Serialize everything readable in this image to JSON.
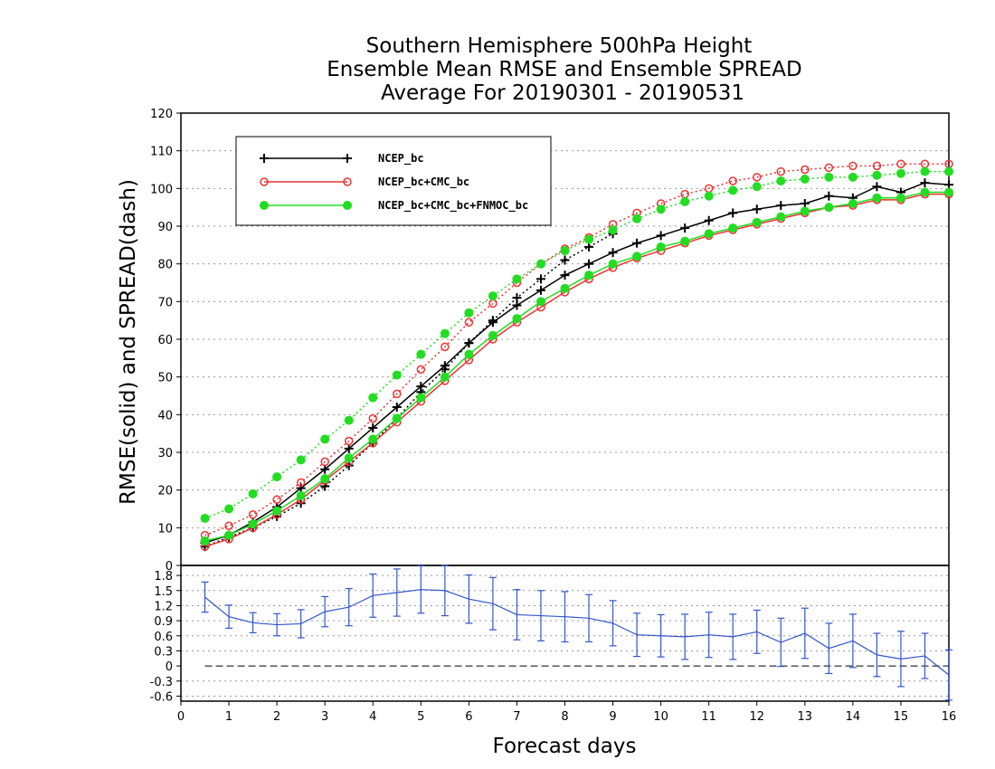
{
  "chart_data": {
    "type": "line",
    "title_lines": [
      "Southern Hemisphere 500hPa Height",
      "Ensemble Mean RMSE and Ensemble SPREAD",
      "Average For 20190301 - 20190531"
    ],
    "xlabel": "Forecast days",
    "ylabel": "RMSE(solid) and SPREAD(dash)",
    "xlim": [
      0,
      16
    ],
    "ylim_top": [
      0,
      120
    ],
    "ylim_bottom": [
      -0.7,
      2.0
    ],
    "x_ticks": [
      "0",
      "1",
      "2",
      "3",
      "4",
      "5",
      "6",
      "7",
      "8",
      "9",
      "10",
      "11",
      "12",
      "13",
      "14",
      "15",
      "16"
    ],
    "y_ticks_top": [
      "0",
      "10",
      "20",
      "30",
      "40",
      "50",
      "60",
      "70",
      "80",
      "90",
      "100",
      "110",
      "120"
    ],
    "y_ticks_bottom": [
      "-0.6",
      "-0.3",
      "0",
      "0.3",
      "0.6",
      "0.9",
      "1.2",
      "1.5",
      "1.8"
    ],
    "legend_position": "top-left",
    "x": [
      0.5,
      1,
      1.5,
      2,
      2.5,
      3,
      3.5,
      4,
      4.5,
      5,
      5.5,
      6,
      6.5,
      7,
      7.5,
      8,
      8.5,
      9,
      9.5,
      10,
      10.5,
      11,
      11.5,
      12,
      12.5,
      13,
      13.5,
      14,
      14.5,
      15,
      15.5,
      16
    ],
    "series": [
      {
        "name": "NCEP_bc",
        "color": "#000000",
        "marker": "plus",
        "rmse": [
          6,
          8,
          11.5,
          15.5,
          20.5,
          25.5,
          31,
          36.5,
          42,
          47.5,
          53,
          59,
          64.5,
          69,
          73,
          77,
          80,
          83,
          85.5,
          87.5,
          89.5,
          91.5,
          93.5,
          94.5,
          95.5,
          96,
          98,
          97.5,
          100.5,
          99,
          101.5,
          101
        ],
        "spread": [
          5,
          7.5,
          10,
          13,
          16.5,
          21,
          26.5,
          32.5,
          39,
          46,
          52,
          59,
          65,
          71,
          76,
          81,
          84.5,
          88,
          null,
          null,
          null,
          null,
          null,
          null,
          null,
          null,
          null,
          null,
          null,
          null,
          null,
          null
        ]
      },
      {
        "name": "NCEP_bc+CMC_bc",
        "color": "#ee3333",
        "marker": "circle-open",
        "rmse": [
          5,
          7,
          10,
          13.5,
          17.5,
          22.5,
          27.5,
          32.5,
          38,
          43.5,
          49,
          54.5,
          60,
          64.5,
          68.5,
          72.5,
          76,
          79,
          81.5,
          83.5,
          85.5,
          87.5,
          89,
          90.5,
          92,
          93.5,
          95,
          95.5,
          97,
          97,
          98.5,
          98.5
        ],
        "spread": [
          8,
          10.5,
          13.5,
          17.5,
          22,
          27.5,
          33,
          39,
          45.5,
          52,
          58,
          64.5,
          69.5,
          75,
          80,
          84,
          87,
          90.5,
          93.5,
          96,
          98.5,
          100,
          102,
          103,
          104.5,
          105,
          105.5,
          106,
          106,
          106.5,
          106.5,
          106.5
        ]
      },
      {
        "name": "NCEP_bc+CMC_bc+FNMOC_bc",
        "color": "#22dd22",
        "marker": "circle-filled",
        "rmse": [
          6.5,
          8,
          11,
          14.5,
          18.5,
          23,
          28.5,
          33.5,
          39,
          44.5,
          50,
          56,
          61,
          65.5,
          70,
          73.5,
          77,
          80,
          82,
          84.5,
          86,
          88,
          89.5,
          91,
          92.5,
          94,
          95,
          96,
          97.5,
          97.5,
          99,
          99
        ],
        "spread": [
          12.5,
          15,
          19,
          23.5,
          28,
          33.5,
          38.5,
          44.5,
          50.5,
          56,
          61.5,
          67,
          71.5,
          76,
          80,
          83.5,
          86.5,
          89,
          92,
          94.5,
          96.5,
          98,
          99.5,
          100.5,
          102,
          102.5,
          103,
          103,
          103.5,
          104,
          104.5,
          104.5
        ]
      }
    ],
    "difference_panel": {
      "color": "#3355cc",
      "x": [
        0.5,
        1,
        1.5,
        2,
        2.5,
        3,
        3.5,
        4,
        4.5,
        5,
        5.5,
        6,
        6.5,
        7,
        7.5,
        8,
        8.5,
        9,
        9.5,
        10,
        10.5,
        11,
        11.5,
        12,
        12.5,
        13,
        13.5,
        14,
        14.5,
        15,
        15.5,
        16
      ],
      "values": [
        1.37,
        0.98,
        0.86,
        0.82,
        0.84,
        1.08,
        1.17,
        1.4,
        1.46,
        1.52,
        1.5,
        1.33,
        1.24,
        1.02,
        1.0,
        0.98,
        0.95,
        0.85,
        0.62,
        0.6,
        0.58,
        0.62,
        0.58,
        0.68,
        0.47,
        0.65,
        0.35,
        0.5,
        0.22,
        0.14,
        0.2,
        -0.18
      ],
      "error": [
        0.3,
        0.23,
        0.2,
        0.22,
        0.28,
        0.3,
        0.37,
        0.43,
        0.47,
        0.47,
        0.5,
        0.48,
        0.52,
        0.5,
        0.5,
        0.5,
        0.47,
        0.45,
        0.43,
        0.42,
        0.45,
        0.45,
        0.45,
        0.43,
        0.48,
        0.5,
        0.5,
        0.53,
        0.43,
        0.55,
        0.45,
        0.5
      ]
    }
  }
}
